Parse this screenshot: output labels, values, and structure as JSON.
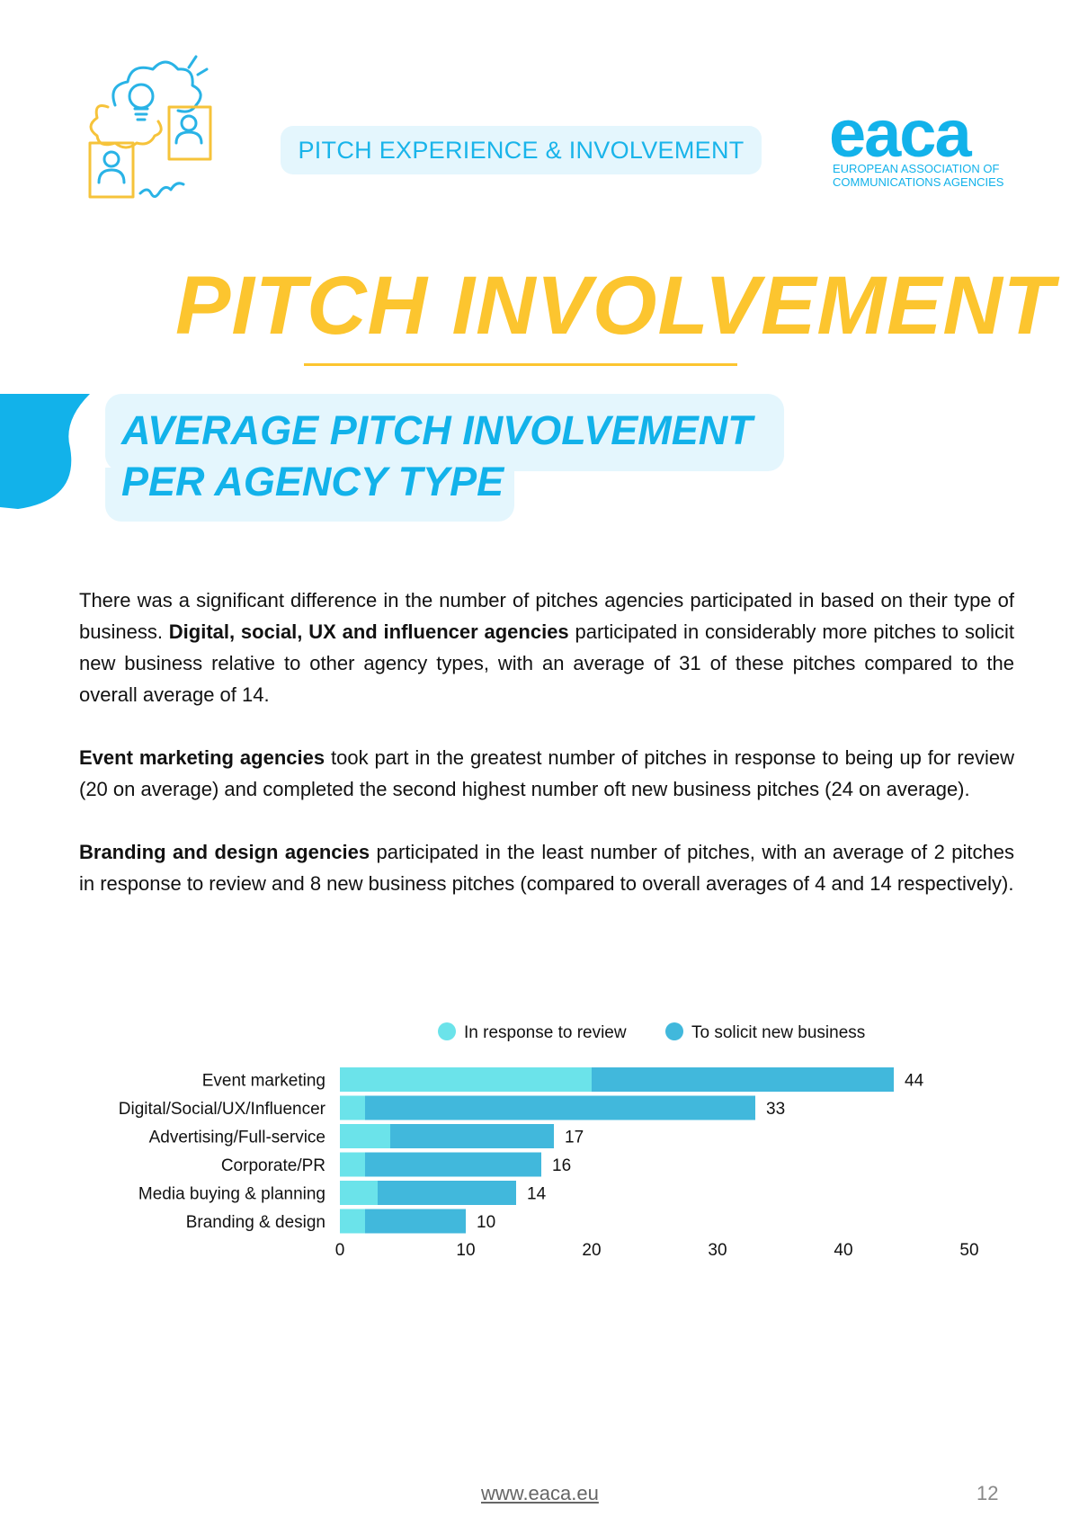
{
  "header": {
    "section_tag": "PITCH EXPERIENCE & INVOLVEMENT",
    "logo_word": "eaca",
    "logo_line1": "EUROPEAN ASSOCIATION OF",
    "logo_line2": "COMMUNICATIONS AGENCIES"
  },
  "title": "PITCH INVOLVEMENT",
  "subtitle": {
    "line1": "AVERAGE PITCH INVOLVEMENT",
    "line2": "PER AGENCY TYPE"
  },
  "body": {
    "p1_a": "There was a significant difference in the number of pitches agencies participated in based on their type of business. ",
    "p1_bold": "Digital, social, UX and influencer agencies",
    "p1_b": " participated in considerably more pitches to solicit new business relative to other agency types, with an average of 31 of these pitches compared to the overall average of 14.",
    "p2_bold": "Event marketing agencies",
    "p2_b": " took part in the greatest number of pitches in response to being up for review (20 on average) and completed the second highest number oft new business pitches (24 on average).",
    "p3_bold": "Branding and design agencies",
    "p3_b": " participated in the least number of pitches, with an average of 2 pitches in response to review and 8 new business pitches (compared to overall averages of 4 and 14 respectively)."
  },
  "chart_data": {
    "type": "bar",
    "orientation": "horizontal",
    "stacked": true,
    "categories": [
      "Event marketing",
      "Digital/Social/UX/Influencer",
      "Advertising/Full-service",
      "Corporate/PR",
      "Media buying & planning",
      "Branding & design"
    ],
    "series": [
      {
        "name": "In response to review",
        "values": [
          20,
          2,
          4,
          2,
          3,
          2
        ],
        "color": "#6be3ea"
      },
      {
        "name": "To solicit new business",
        "values": [
          24,
          31,
          13,
          14,
          11,
          8
        ],
        "color": "#41b8dc"
      }
    ],
    "totals": [
      44,
      33,
      17,
      16,
      14,
      10
    ],
    "xlim": [
      0,
      50
    ],
    "xticks": [
      0,
      10,
      20,
      30,
      40,
      50
    ],
    "legend_position": "top",
    "grid": false
  },
  "footer": {
    "url": "www.eaca.eu",
    "page_number": "12"
  }
}
